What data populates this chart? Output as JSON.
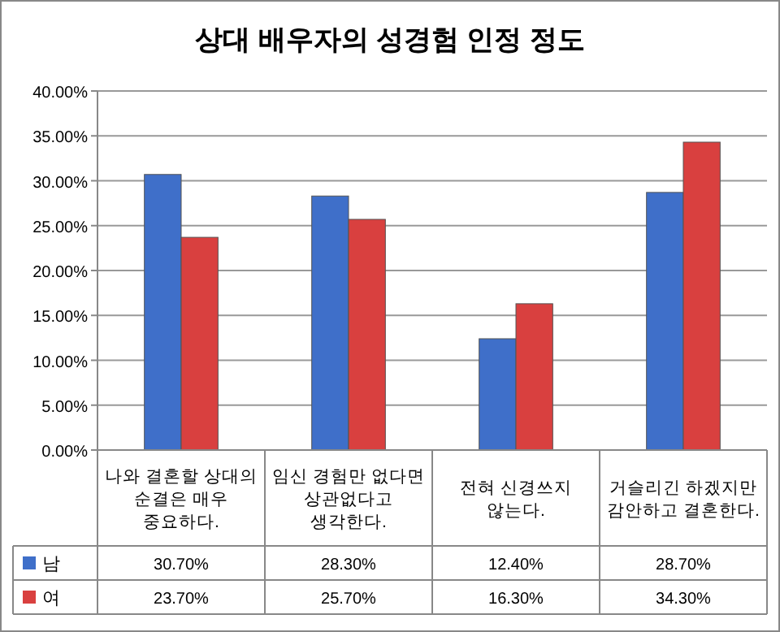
{
  "chart_data": {
    "type": "bar",
    "title": "상대 배우자의 성경험 인정 정도",
    "categories": [
      "나와 결혼할 상대의 순결은 매우 중요하다.",
      "임신 경험만 없다면 상관없다고 생각한다.",
      "전혀 신경쓰지 않는다.",
      "거슬리긴 하겠지만 감안하고 결혼한다."
    ],
    "series": [
      {
        "name": "남",
        "color": "#3f6fc9",
        "values": [
          30.7,
          28.3,
          12.4,
          28.7
        ],
        "value_labels": [
          "30.70%",
          "28.30%",
          "12.40%",
          "28.70%"
        ]
      },
      {
        "name": "여",
        "color": "#d9403f",
        "values": [
          23.7,
          25.7,
          16.3,
          34.3
        ],
        "value_labels": [
          "23.70%",
          "25.70%",
          "16.30%",
          "34.30%"
        ]
      }
    ],
    "ylim": [
      0,
      40
    ],
    "yticks": [
      {
        "value": 0,
        "label": "0.00%"
      },
      {
        "value": 5,
        "label": "5.00%"
      },
      {
        "value": 10,
        "label": "10.00%"
      },
      {
        "value": 15,
        "label": "15.00%"
      },
      {
        "value": 20,
        "label": "20.00%"
      },
      {
        "value": 25,
        "label": "25.00%"
      },
      {
        "value": 30,
        "label": "30.00%"
      },
      {
        "value": 35,
        "label": "35.00%"
      },
      {
        "value": 40,
        "label": "40.00%"
      }
    ],
    "grid": "y",
    "legend": "left"
  }
}
